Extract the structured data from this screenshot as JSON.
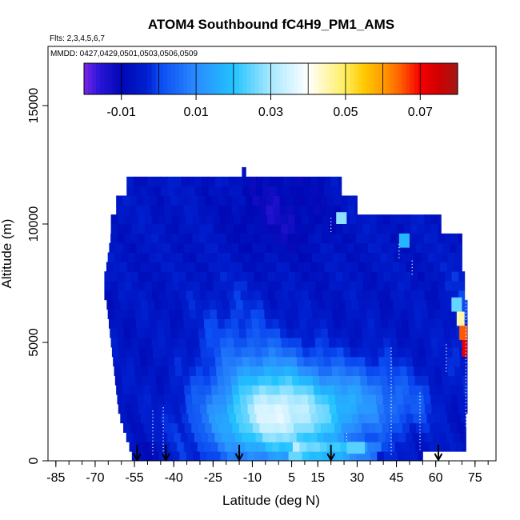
{
  "chart_data": {
    "type": "heatmap",
    "title": "ATOM4 Southbound fC4H9_PM1_AMS",
    "flights_label": "Flts: 2,3,4,5,6,7",
    "dates_label": "MMDD: 0427,0429,0501,0503,0506,0509",
    "xlabel": "Latitude (deg N)",
    "ylabel": "Altitude (m)",
    "xlim": [
      -88,
      83
    ],
    "ylim": [
      0,
      17500
    ],
    "x_ticks": [
      -85,
      -70,
      -55,
      -40,
      -25,
      -10,
      5,
      15,
      30,
      45,
      60,
      75
    ],
    "x_minor_step": 5,
    "y_ticks": [
      0,
      5000,
      10000,
      15000
    ],
    "colorbar": {
      "range": [
        -0.02,
        0.08
      ],
      "tick_labels": [
        "-0.01",
        "0.01",
        "0.03",
        "0.05",
        "0.07"
      ],
      "tick_values": [
        -0.01,
        0.01,
        0.03,
        0.05,
        0.07
      ],
      "stops": [
        {
          "v": -0.02,
          "c": "#7a26e6"
        },
        {
          "v": -0.016,
          "c": "#2a15d8"
        },
        {
          "v": -0.01,
          "c": "#0008b4"
        },
        {
          "v": -0.003,
          "c": "#0020d0"
        },
        {
          "v": 0.0,
          "c": "#0a48f0"
        },
        {
          "v": 0.01,
          "c": "#2a8cff"
        },
        {
          "v": 0.02,
          "c": "#22c2ff"
        },
        {
          "v": 0.03,
          "c": "#a8e8ff"
        },
        {
          "v": 0.04,
          "c": "#ffffff"
        },
        {
          "v": 0.05,
          "c": "#ffee5c"
        },
        {
          "v": 0.055,
          "c": "#ffc800"
        },
        {
          "v": 0.06,
          "c": "#ff9c00"
        },
        {
          "v": 0.065,
          "c": "#ff5a00"
        },
        {
          "v": 0.07,
          "c": "#f50000"
        },
        {
          "v": 0.075,
          "c": "#d00000"
        },
        {
          "v": 0.08,
          "c": "#a31818"
        }
      ]
    },
    "profile_latitudes": [
      -54,
      -43,
      -15,
      20,
      61
    ]
  }
}
